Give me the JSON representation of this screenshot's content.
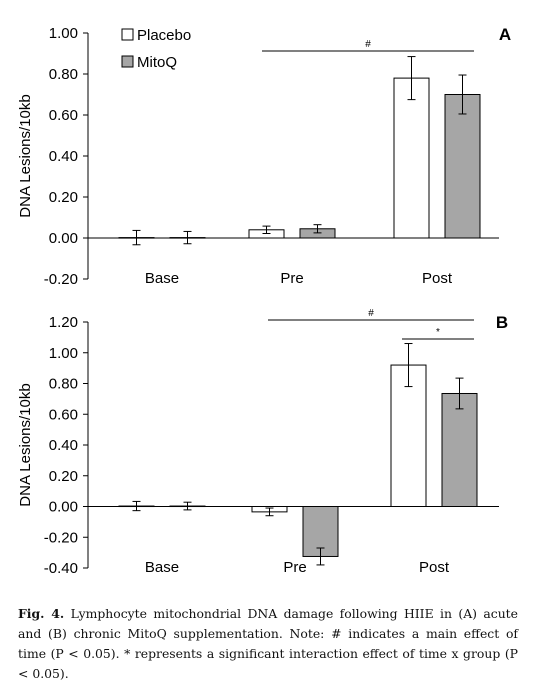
{
  "chart_data": [
    {
      "panel_label": "A",
      "type": "bar",
      "ylabel": "DNA Lesions/10kb",
      "ylim": [
        -0.2,
        1.0
      ],
      "ytick_labels": [
        "1.00",
        "0.80",
        "0.60",
        "0.40",
        "0.20",
        "0.00",
        "-0.20"
      ],
      "ytick_values": [
        1.0,
        0.8,
        0.6,
        0.4,
        0.2,
        0.0,
        -0.2
      ],
      "categories": [
        "Base",
        "Pre",
        "Post"
      ],
      "legend": "top-left",
      "series": [
        {
          "name": "Placebo",
          "color": "#ffffff",
          "values": [
            0.002,
            0.04,
            0.78
          ],
          "errors": [
            0.035,
            0.018,
            0.105
          ]
        },
        {
          "name": "MitoQ",
          "color": "#a6a6a6",
          "values": [
            0.002,
            0.045,
            0.7
          ],
          "errors": [
            0.03,
            0.02,
            0.095
          ]
        }
      ],
      "annotations": [
        {
          "symbol": "#",
          "from_category": 1,
          "to_category": 2
        }
      ]
    },
    {
      "panel_label": "B",
      "type": "bar",
      "ylabel": "DNA Lesions/10kb",
      "ylim": [
        -0.4,
        1.2
      ],
      "ytick_labels": [
        "1.20",
        "1.00",
        "0.80",
        "0.60",
        "0.40",
        "0.20",
        "0.00",
        "-0.20",
        "-0.40"
      ],
      "ytick_values": [
        1.2,
        1.0,
        0.8,
        0.6,
        0.4,
        0.2,
        0.0,
        -0.2,
        -0.4
      ],
      "categories": [
        "Base",
        "Pre",
        "Post"
      ],
      "series": [
        {
          "name": "Placebo",
          "color": "#ffffff",
          "values": [
            0.003,
            -0.035,
            0.92
          ],
          "errors": [
            0.03,
            0.025,
            0.14
          ]
        },
        {
          "name": "MitoQ",
          "color": "#a6a6a6",
          "values": [
            0.003,
            -0.325,
            0.735
          ],
          "errors": [
            0.025,
            0.055,
            0.1
          ]
        }
      ],
      "annotations": [
        {
          "symbol": "#",
          "from_category": 1,
          "to_category": 2
        },
        {
          "symbol": "*",
          "from_category": 2,
          "to_category": 2
        }
      ]
    }
  ],
  "caption": {
    "label": "Fig. 4.",
    "text": "Lymphocyte mitochondrial DNA damage following HIIE in (A) acute and (B) chronic MitoQ supplementation. Note: # indicates a main effect of time (P < 0.05). * represents a significant interaction effect of time x group (P < 0.05)."
  }
}
